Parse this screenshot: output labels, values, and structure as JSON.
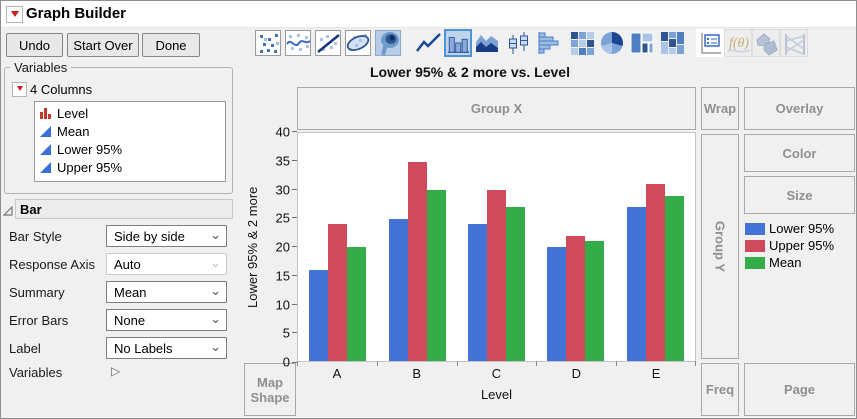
{
  "window": {
    "title": "Graph Builder"
  },
  "toolbar": {
    "undo_label": "Undo",
    "start_over_label": "Start Over",
    "done_label": "Done"
  },
  "icon_strip": {
    "icons": [
      {
        "name": "points"
      },
      {
        "name": "smoother"
      },
      {
        "name": "line-of-fit"
      },
      {
        "name": "ellipse"
      },
      {
        "name": "contour"
      },
      {
        "name": "line"
      },
      {
        "name": "bar",
        "selected": true
      },
      {
        "name": "area"
      },
      {
        "name": "box-plot"
      },
      {
        "name": "histogram"
      },
      {
        "name": "heatmap"
      },
      {
        "name": "pie"
      },
      {
        "name": "treemap"
      },
      {
        "name": "mosaic"
      },
      {
        "name": "caption-box"
      },
      {
        "name": "formula",
        "disabled": true
      },
      {
        "name": "map-shapes",
        "disabled": true
      },
      {
        "name": "parallel-plot",
        "disabled": true
      }
    ]
  },
  "variables_panel": {
    "legend": "Variables",
    "columns_header": "4 Columns",
    "columns": [
      {
        "name": "Level",
        "type": "nominal"
      },
      {
        "name": "Mean",
        "type": "continuous"
      },
      {
        "name": "Lower 95%",
        "type": "continuous"
      },
      {
        "name": "Upper 95%",
        "type": "continuous"
      }
    ]
  },
  "bar_panel": {
    "header": "Bar",
    "controls": [
      {
        "label": "Bar Style",
        "value": "Side by side",
        "enabled": true
      },
      {
        "label": "Response Axis",
        "value": "Auto",
        "enabled": false
      },
      {
        "label": "Summary",
        "value": "Mean",
        "enabled": true
      },
      {
        "label": "Error Bars",
        "value": "None",
        "enabled": true
      },
      {
        "label": "Label",
        "value": "No Labels",
        "enabled": true
      },
      {
        "label": "Variables"
      }
    ]
  },
  "zones": {
    "group_x": "Group X",
    "wrap": "Wrap",
    "overlay": "Overlay",
    "color": "Color",
    "size": "Size",
    "group_y": "Group Y",
    "freq": "Freq",
    "page": "Page",
    "map_shape": "Map Shape"
  },
  "chart_data": {
    "type": "bar",
    "title": "Lower 95% & 2 more vs. Level",
    "categories": [
      "A",
      "B",
      "C",
      "D",
      "E"
    ],
    "series": [
      {
        "name": "Lower 95%",
        "color": "#4473d6",
        "values": [
          16,
          25,
          24,
          20,
          27
        ]
      },
      {
        "name": "Upper 95%",
        "color": "#ce4a5c",
        "values": [
          24,
          35,
          30,
          22,
          31
        ]
      },
      {
        "name": "Mean",
        "color": "#33ac49",
        "values": [
          20,
          30,
          27,
          21,
          29
        ]
      }
    ],
    "xlabel": "Level",
    "ylabel": "Lower 95% & 2 more",
    "ylim": [
      0,
      40
    ],
    "ytick_step": 5,
    "grid": false,
    "legend_position": "right"
  }
}
